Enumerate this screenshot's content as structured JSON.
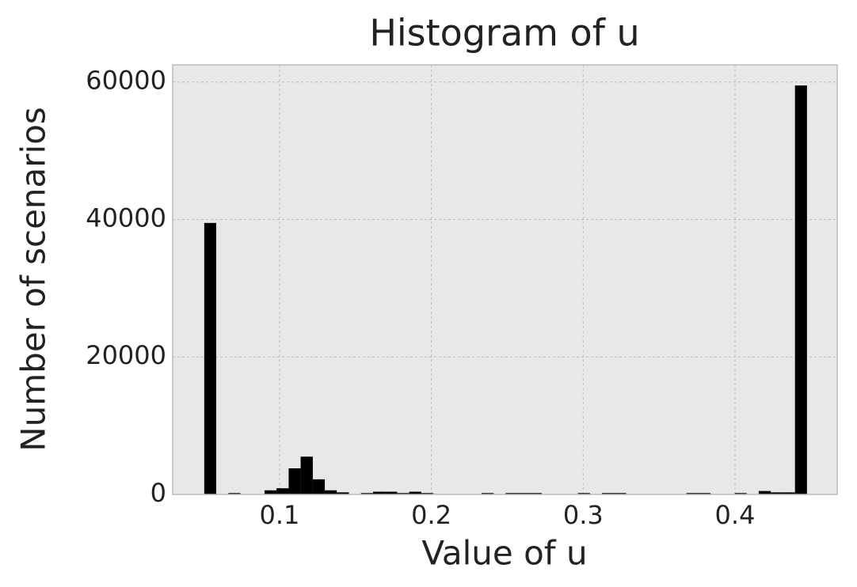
{
  "chart_data": {
    "type": "histogram",
    "title": "Histogram of u",
    "xlabel": "Value of u",
    "ylabel": "Number of scenarios",
    "bins": [
      0.0504,
      0.0583,
      0.0663,
      0.0742,
      0.0822,
      0.0901,
      0.098,
      0.106,
      0.1139,
      0.1219,
      0.1298,
      0.1377,
      0.1457,
      0.1536,
      0.1616,
      0.1695,
      0.1774,
      0.1854,
      0.1933,
      0.2013,
      0.2092,
      0.2171,
      0.2251,
      0.233,
      0.241,
      0.2489,
      0.2568,
      0.2648,
      0.2727,
      0.2807,
      0.2886,
      0.2965,
      0.3045,
      0.3124,
      0.3204,
      0.3283,
      0.3362,
      0.3442,
      0.3521,
      0.3601,
      0.368,
      0.3759,
      0.3839,
      0.3918,
      0.3998,
      0.4077,
      0.4156,
      0.4236,
      0.4315,
      0.4395,
      0.4474
    ],
    "values": [
      39500,
      0,
      200,
      0,
      0,
      600,
      900,
      3800,
      5500,
      2200,
      600,
      300,
      0,
      200,
      400,
      400,
      200,
      400,
      200,
      0,
      0,
      0,
      0,
      200,
      0,
      200,
      200,
      200,
      0,
      0,
      0,
      200,
      0,
      200,
      200,
      0,
      0,
      0,
      0,
      0,
      200,
      200,
      0,
      0,
      200,
      0,
      500,
      300,
      300,
      59500
    ],
    "color": "#000000",
    "xlim": [
      0.0296,
      0.4673
    ],
    "xticks": [
      0.1,
      0.2,
      0.3,
      0.4
    ],
    "ylim": [
      0,
      62500
    ],
    "yticks": [
      0,
      20000,
      40000,
      60000
    ],
    "grid": true
  }
}
